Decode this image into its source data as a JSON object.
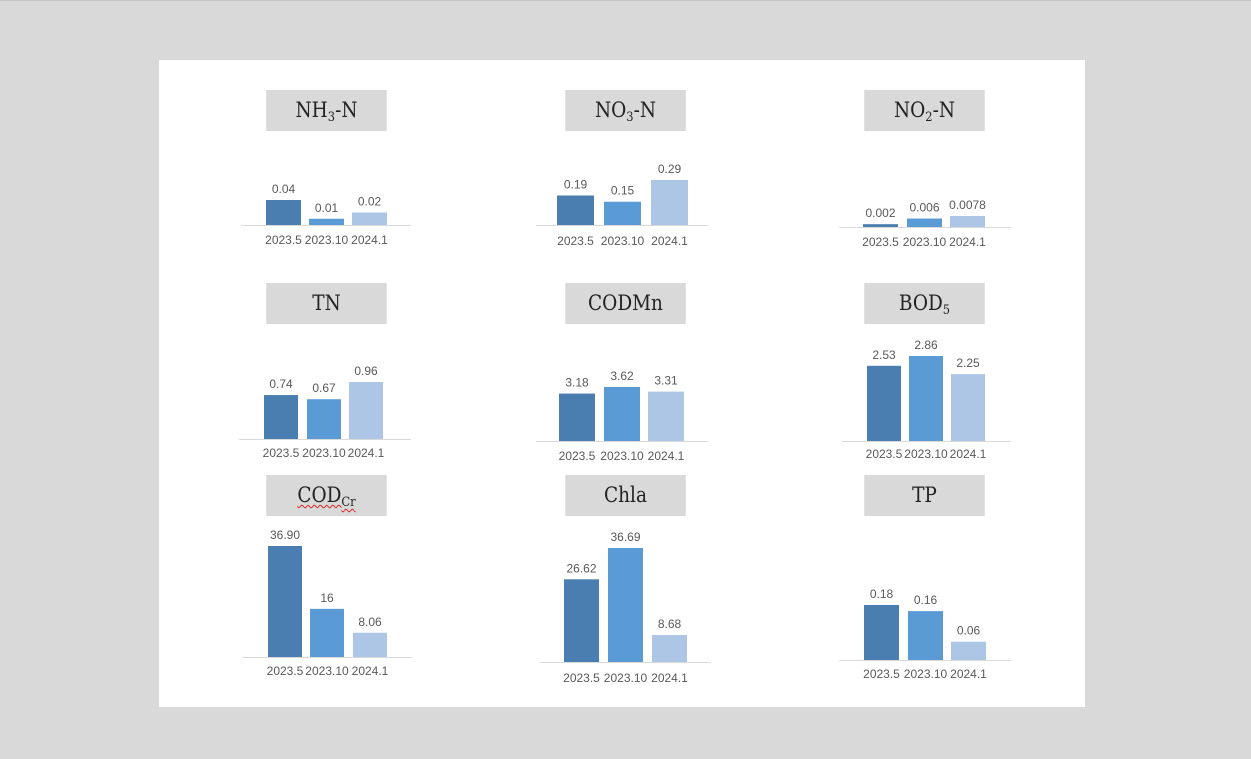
{
  "categories": [
    "2023.5",
    "2023.10",
    "2024.1"
  ],
  "colors": {
    "series": [
      "#4a7eb0",
      "#5b9bd5",
      "#adc6e5"
    ],
    "axis": "#d9d9d9",
    "label": "#595959",
    "title_bg": "#d9d9d9"
  },
  "chart_data": [
    {
      "type": "bar",
      "title_main": "NH",
      "title_sub": "3",
      "title_rest": "-N",
      "categories": [
        "2023.5",
        "2023.10",
        "2024.1"
      ],
      "values": [
        0.04,
        0.01,
        0.02
      ],
      "labels": [
        "0.04",
        "0.01",
        "0.02"
      ]
    },
    {
      "type": "bar",
      "title_main": "NO",
      "title_sub": "3",
      "title_rest": "-N",
      "categories": [
        "2023.5",
        "2023.10",
        "2024.1"
      ],
      "values": [
        0.19,
        0.15,
        0.29
      ],
      "labels": [
        "0.19",
        "0.15",
        "0.29"
      ]
    },
    {
      "type": "bar",
      "title_main": "NO",
      "title_sub": "2",
      "title_rest": "-N",
      "categories": [
        "2023.5",
        "2023.10",
        "2024.1"
      ],
      "values": [
        0.002,
        0.006,
        0.0078
      ],
      "labels": [
        "0.002",
        "0.006",
        "0.0078"
      ]
    },
    {
      "type": "bar",
      "title_main": "TN",
      "title_sub": "",
      "title_rest": "",
      "categories": [
        "2023.5",
        "2023.10",
        "2024.1"
      ],
      "values": [
        0.74,
        0.67,
        0.96
      ],
      "labels": [
        "0.74",
        "0.67",
        "0.96"
      ]
    },
    {
      "type": "bar",
      "title_main": "CODMn",
      "title_sub": "",
      "title_rest": "",
      "categories": [
        "2023.5",
        "2023.10",
        "2024.1"
      ],
      "values": [
        3.18,
        3.62,
        3.31
      ],
      "labels": [
        "3.18",
        "3.62",
        "3.31"
      ]
    },
    {
      "type": "bar",
      "title_main": "BOD",
      "title_sub": "5",
      "title_rest": "",
      "categories": [
        "2023.5",
        "2023.10",
        "2024.1"
      ],
      "values": [
        2.53,
        2.86,
        2.25
      ],
      "labels": [
        "2.53",
        "2.86",
        "2.25"
      ]
    },
    {
      "type": "bar",
      "title_main": "COD",
      "title_sub": "Cr",
      "title_rest": "",
      "categories": [
        "2023.5",
        "2023.10",
        "2024.1"
      ],
      "values": [
        36.9,
        16,
        8.06
      ],
      "labels": [
        "36.90",
        "16",
        "8.06"
      ]
    },
    {
      "type": "bar",
      "title_main": "Chla",
      "title_sub": "",
      "title_rest": "",
      "categories": [
        "2023.5",
        "2023.10",
        "2024.1"
      ],
      "values": [
        26.62,
        36.69,
        8.68
      ],
      "labels": [
        "26.62",
        "36.69",
        "8.68"
      ]
    },
    {
      "type": "bar",
      "title_main": "TP",
      "title_sub": "",
      "title_rest": "",
      "categories": [
        "2023.5",
        "2023.10",
        "2024.1"
      ],
      "values": [
        0.18,
        0.16,
        0.06
      ],
      "labels": [
        "0.18",
        "0.16",
        "0.06"
      ]
    }
  ]
}
